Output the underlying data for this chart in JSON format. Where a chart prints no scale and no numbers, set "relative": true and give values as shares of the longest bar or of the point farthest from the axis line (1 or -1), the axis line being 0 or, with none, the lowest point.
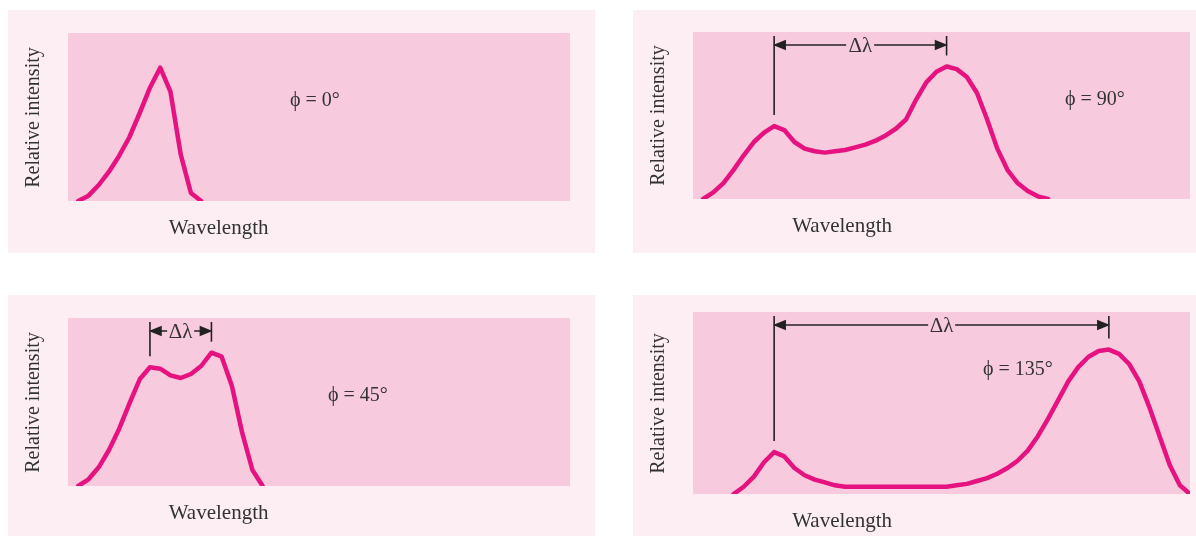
{
  "chart_data": [
    {
      "type": "line",
      "relative": true,
      "xlabel": "Wavelength",
      "ylabel": "Relative intensity",
      "color": "#e6127f",
      "marker": "none",
      "annotations": [
        "ϕ = 0°"
      ],
      "categories": [
        null,
        null,
        null,
        null,
        null,
        null,
        null,
        null,
        null,
        null,
        null,
        null,
        null,
        null,
        null,
        null,
        null,
        null,
        null,
        null,
        null,
        null,
        null,
        null,
        null,
        null,
        null,
        null,
        null,
        null,
        null,
        null,
        null,
        null,
        null,
        null,
        null,
        null,
        null,
        null,
        null,
        null,
        null,
        null,
        null,
        null,
        null,
        null,
        null,
        null
      ],
      "values": [
        null,
        0,
        0.04,
        0.12,
        0.22,
        0.34,
        0.48,
        0.66,
        0.85,
        1,
        0.82,
        0.35,
        0.06,
        0,
        null,
        null,
        null,
        null,
        null,
        null,
        null,
        null,
        null,
        null,
        null,
        null,
        null,
        null,
        null,
        null,
        null,
        null,
        null,
        null,
        null,
        null,
        null,
        null,
        null,
        null,
        null,
        null,
        null,
        null,
        null,
        null,
        null,
        null,
        null,
        null
      ]
    },
    {
      "type": "line",
      "relative": true,
      "xlabel": "Wavelength",
      "ylabel": "Relative intensity",
      "color": "#e6127f",
      "marker": "none",
      "annotations": [
        "Δλ",
        "ϕ = 90°"
      ],
      "categories": [
        null,
        null,
        null,
        null,
        null,
        null,
        null,
        null,
        null,
        null,
        null,
        null,
        null,
        null,
        null,
        null,
        null,
        null,
        null,
        null,
        null,
        null,
        null,
        null,
        null,
        null,
        null,
        null,
        null,
        null,
        null,
        null,
        null,
        null,
        null,
        null,
        null,
        null,
        null,
        null,
        null,
        null,
        null,
        null,
        null,
        null,
        null,
        null,
        null,
        null
      ],
      "values": [
        null,
        0,
        0.05,
        0.12,
        0.22,
        0.33,
        0.43,
        0.5,
        0.55,
        0.52,
        0.43,
        0.38,
        0.36,
        0.35,
        0.36,
        0.37,
        0.39,
        0.41,
        0.44,
        0.48,
        0.53,
        0.6,
        0.75,
        0.88,
        0.96,
        1,
        0.98,
        0.92,
        0.8,
        0.6,
        0.38,
        0.22,
        0.12,
        0.06,
        0.02,
        0,
        null,
        null,
        null,
        null,
        null,
        null,
        null,
        null,
        null,
        null,
        null,
        null,
        null,
        null
      ]
    },
    {
      "type": "line",
      "relative": true,
      "xlabel": "Wavelength",
      "ylabel": "Relative intensity",
      "color": "#e6127f",
      "marker": "none",
      "annotations": [
        "Δλ",
        "ϕ = 45°"
      ],
      "categories": [
        null,
        null,
        null,
        null,
        null,
        null,
        null,
        null,
        null,
        null,
        null,
        null,
        null,
        null,
        null,
        null,
        null,
        null,
        null,
        null,
        null,
        null,
        null,
        null,
        null,
        null,
        null,
        null,
        null,
        null,
        null,
        null,
        null,
        null,
        null,
        null,
        null,
        null,
        null,
        null,
        null,
        null,
        null,
        null,
        null,
        null,
        null,
        null,
        null,
        null
      ],
      "values": [
        null,
        0,
        0.05,
        0.14,
        0.27,
        0.43,
        0.62,
        0.8,
        0.89,
        0.88,
        0.83,
        0.81,
        0.84,
        0.9,
        1,
        0.97,
        0.75,
        0.4,
        0.12,
        0,
        null,
        null,
        null,
        null,
        null,
        null,
        null,
        null,
        null,
        null,
        null,
        null,
        null,
        null,
        null,
        null,
        null,
        null,
        null,
        null,
        null,
        null,
        null,
        null,
        null,
        null,
        null,
        null,
        null,
        null
      ]
    },
    {
      "type": "line",
      "relative": true,
      "xlabel": "Wavelength",
      "ylabel": "Relative intensity",
      "color": "#e6127f",
      "marker": "none",
      "annotations": [
        "Δλ",
        "ϕ = 135°"
      ],
      "categories": [
        null,
        null,
        null,
        null,
        null,
        null,
        null,
        null,
        null,
        null,
        null,
        null,
        null,
        null,
        null,
        null,
        null,
        null,
        null,
        null,
        null,
        null,
        null,
        null,
        null,
        null,
        null,
        null,
        null,
        null,
        null,
        null,
        null,
        null,
        null,
        null,
        null,
        null,
        null,
        null,
        null,
        null,
        null,
        null,
        null,
        null,
        null,
        null,
        null,
        null
      ],
      "values": [
        null,
        null,
        null,
        null,
        0,
        0.05,
        0.12,
        0.22,
        0.29,
        0.26,
        0.18,
        0.13,
        0.1,
        0.08,
        0.06,
        0.05,
        0.05,
        0.05,
        0.05,
        0.05,
        0.05,
        0.05,
        0.05,
        0.05,
        0.05,
        0.05,
        0.06,
        0.07,
        0.09,
        0.11,
        0.14,
        0.18,
        0.23,
        0.3,
        0.4,
        0.52,
        0.65,
        0.78,
        0.88,
        0.95,
        0.99,
        1,
        0.97,
        0.9,
        0.78,
        0.6,
        0.4,
        0.2,
        0.06,
        0
      ]
    }
  ]
}
